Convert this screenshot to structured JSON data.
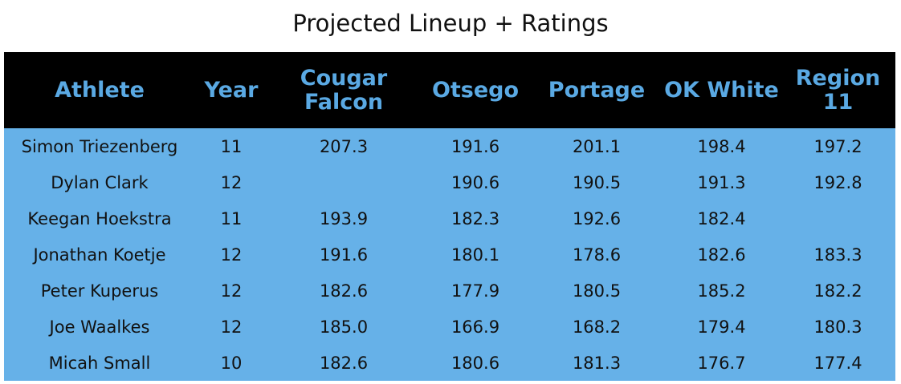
{
  "title": "Projected Lineup + Ratings",
  "header": {
    "columns": [
      "Athlete",
      "Year",
      "Cougar Falcon",
      "Otsego",
      "Portage",
      "OK White",
      "Region 11"
    ]
  },
  "rows": [
    [
      "Simon Triezenberg",
      "11",
      "207.3",
      "191.6",
      "201.1",
      "198.4",
      "197.2"
    ],
    [
      "Dylan Clark",
      "12",
      "",
      "190.6",
      "190.5",
      "191.3",
      "192.8"
    ],
    [
      "Keegan Hoekstra",
      "11",
      "193.9",
      "182.3",
      "192.6",
      "182.4",
      ""
    ],
    [
      "Jonathan Koetje",
      "12",
      "191.6",
      "180.1",
      "178.6",
      "182.6",
      "183.3"
    ],
    [
      "Peter Kuperus",
      "12",
      "182.6",
      "177.9",
      "180.5",
      "185.2",
      "182.2"
    ],
    [
      "Joe Waalkes",
      "12",
      "185.0",
      "166.9",
      "168.2",
      "179.4",
      "180.3"
    ],
    [
      "Micah Small",
      "10",
      "182.6",
      "180.6",
      "181.3",
      "176.7",
      "177.4"
    ]
  ],
  "colors": {
    "header_bg": "#000000",
    "header_text": "#5aa9e3",
    "body_bg": "#66b1e8",
    "text": "#111111"
  }
}
